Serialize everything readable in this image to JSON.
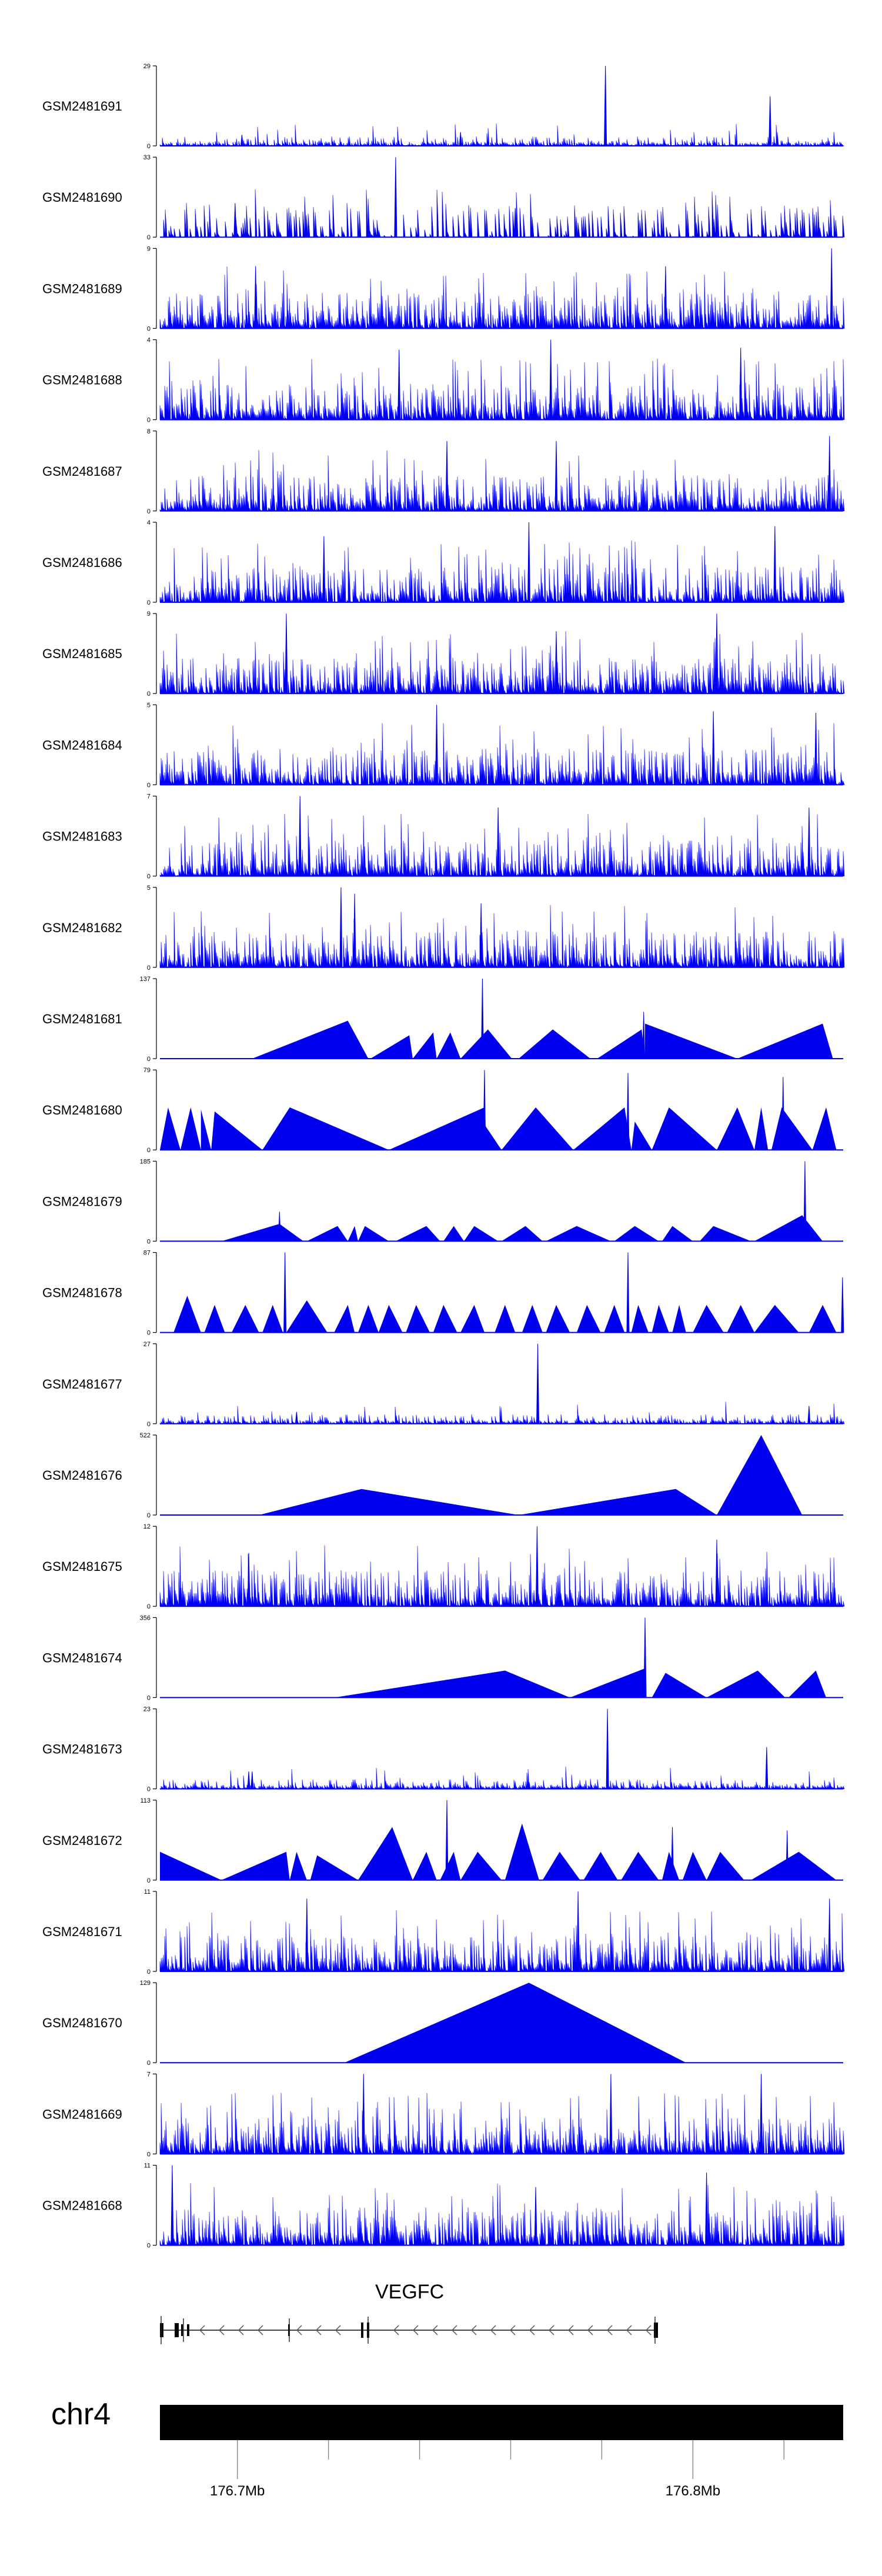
{
  "chart_data": {
    "type": "area",
    "title": "",
    "region": {
      "chromosome": "chr4",
      "gene": "VEGFC",
      "start_mb": 176.683,
      "end_mb": 176.833,
      "axis_ticks_mb": [
        176.7,
        176.8
      ],
      "axis_tick_labels": [
        "176.7Mb",
        "176.8Mb"
      ],
      "minor_ticks_mb": [
        176.72,
        176.74,
        176.76,
        176.78,
        176.82
      ]
    },
    "style": {
      "fill_color": "#0000ee",
      "gene_color": "#000000"
    },
    "tracks": [
      {
        "name": "GSM2481691",
        "ymin": 0,
        "ymax": 29,
        "density": "sparse",
        "seed": 11,
        "peaks": [
          [
            0.652,
            29
          ],
          [
            0.893,
            18
          ],
          [
            0.12,
            4
          ],
          [
            0.44,
            5
          ]
        ]
      },
      {
        "name": "GSM2481690",
        "ymin": 0,
        "ymax": 33,
        "density": "tri",
        "seed": 23,
        "peaks": [
          [
            0.345,
            33
          ],
          [
            0.11,
            14
          ],
          [
            0.52,
            12
          ]
        ]
      },
      {
        "name": "GSM2481689",
        "ymin": 0,
        "ymax": 9,
        "density": "dense",
        "seed": 37,
        "peaks": [
          [
            0.983,
            9
          ],
          [
            0.14,
            7
          ],
          [
            0.74,
            7
          ]
        ]
      },
      {
        "name": "GSM2481688",
        "ymin": 0,
        "ymax": 4,
        "density": "dense",
        "seed": 41,
        "peaks": [
          [
            0.572,
            4
          ],
          [
            0.35,
            3.5
          ],
          [
            0.85,
            3.6
          ]
        ]
      },
      {
        "name": "GSM2481687",
        "ymin": 0,
        "ymax": 8,
        "density": "dense",
        "seed": 53,
        "peaks": [
          [
            0.42,
            7
          ],
          [
            0.58,
            7
          ],
          [
            0.98,
            7.5
          ]
        ]
      },
      {
        "name": "GSM2481686",
        "ymin": 0,
        "ymax": 4,
        "density": "dense",
        "seed": 67,
        "peaks": [
          [
            0.54,
            4
          ],
          [
            0.9,
            3.8
          ],
          [
            0.24,
            3.3
          ]
        ]
      },
      {
        "name": "GSM2481685",
        "ymin": 0,
        "ymax": 9,
        "density": "dense",
        "seed": 71,
        "peaks": [
          [
            0.185,
            9
          ],
          [
            0.815,
            9
          ],
          [
            0.58,
            7
          ]
        ]
      },
      {
        "name": "GSM2481684",
        "ymin": 0,
        "ymax": 5,
        "density": "dense",
        "seed": 83,
        "peaks": [
          [
            0.405,
            5
          ],
          [
            0.81,
            4.6
          ],
          [
            0.96,
            4.5
          ]
        ]
      },
      {
        "name": "GSM2481683",
        "ymin": 0,
        "ymax": 7,
        "density": "dense",
        "seed": 97,
        "peaks": [
          [
            0.205,
            7
          ],
          [
            0.495,
            6
          ],
          [
            0.95,
            6
          ]
        ]
      },
      {
        "name": "GSM2481682",
        "ymin": 0,
        "ymax": 5,
        "density": "dense",
        "seed": 101,
        "peaks": [
          [
            0.265,
            5
          ],
          [
            0.285,
            4.6
          ],
          [
            0.47,
            4
          ]
        ]
      },
      {
        "name": "GSM2481681",
        "ymin": 0,
        "ymax": 137,
        "density": "none",
        "seed": 1,
        "peaks": [
          [
            0.472,
            137
          ],
          [
            0.708,
            80
          ]
        ],
        "tris": [
          [
            0.135,
            0.275,
            0.305,
            65
          ],
          [
            0.308,
            0.365,
            0.37,
            40
          ],
          [
            0.37,
            0.4,
            0.405,
            45
          ],
          [
            0.405,
            0.425,
            0.44,
            45
          ],
          [
            0.44,
            0.48,
            0.515,
            50
          ],
          [
            0.525,
            0.575,
            0.63,
            50
          ],
          [
            0.64,
            0.705,
            0.71,
            50
          ],
          [
            0.71,
            0.71,
            0.845,
            60
          ],
          [
            0.845,
            0.97,
            0.985,
            60
          ]
        ]
      },
      {
        "name": "GSM2481680",
        "ymin": 0,
        "ymax": 79,
        "density": "none",
        "seed": 1,
        "peaks": [
          [
            0.475,
            79
          ],
          [
            0.685,
            76
          ],
          [
            0.912,
            72
          ]
        ],
        "tris": [
          [
            0.0,
            0.012,
            0.03,
            42
          ],
          [
            0.03,
            0.045,
            0.06,
            42
          ],
          [
            0.06,
            0.06,
            0.075,
            40
          ],
          [
            0.075,
            0.08,
            0.15,
            38
          ],
          [
            0.15,
            0.19,
            0.335,
            42
          ],
          [
            0.335,
            0.475,
            0.475,
            42
          ],
          [
            0.475,
            0.475,
            0.5,
            25
          ],
          [
            0.5,
            0.55,
            0.605,
            42
          ],
          [
            0.605,
            0.68,
            0.69,
            42
          ],
          [
            0.69,
            0.695,
            0.72,
            28
          ],
          [
            0.72,
            0.745,
            0.815,
            42
          ],
          [
            0.815,
            0.845,
            0.87,
            42
          ],
          [
            0.87,
            0.88,
            0.89,
            42
          ],
          [
            0.895,
            0.91,
            0.955,
            42
          ],
          [
            0.955,
            0.975,
            0.99,
            42
          ]
        ]
      },
      {
        "name": "GSM2481679",
        "ymin": 0,
        "ymax": 185,
        "density": "none",
        "seed": 1,
        "peaks": [
          [
            0.175,
            68
          ],
          [
            0.944,
            185
          ]
        ],
        "tris": [
          [
            0.09,
            0.175,
            0.21,
            40
          ],
          [
            0.215,
            0.26,
            0.275,
            35
          ],
          [
            0.275,
            0.285,
            0.29,
            35
          ],
          [
            0.29,
            0.3,
            0.335,
            35
          ],
          [
            0.345,
            0.39,
            0.41,
            35
          ],
          [
            0.415,
            0.43,
            0.445,
            35
          ],
          [
            0.445,
            0.46,
            0.495,
            35
          ],
          [
            0.5,
            0.535,
            0.56,
            35
          ],
          [
            0.565,
            0.61,
            0.66,
            35
          ],
          [
            0.665,
            0.695,
            0.73,
            35
          ],
          [
            0.735,
            0.75,
            0.78,
            35
          ],
          [
            0.79,
            0.81,
            0.865,
            35
          ],
          [
            0.87,
            0.94,
            0.97,
            60
          ]
        ]
      },
      {
        "name": "GSM2481678",
        "ymin": 0,
        "ymax": 87,
        "density": "none",
        "seed": 1,
        "peaks": [
          [
            0.183,
            87
          ],
          [
            0.685,
            87
          ],
          [
            0.999,
            60
          ]
        ],
        "tris": [
          [
            0.02,
            0.04,
            0.06,
            40
          ],
          [
            0.065,
            0.08,
            0.095,
            30
          ],
          [
            0.105,
            0.125,
            0.145,
            30
          ],
          [
            0.15,
            0.165,
            0.18,
            30
          ],
          [
            0.185,
            0.215,
            0.245,
            35
          ],
          [
            0.255,
            0.275,
            0.285,
            30
          ],
          [
            0.29,
            0.305,
            0.32,
            30
          ],
          [
            0.32,
            0.335,
            0.355,
            30
          ],
          [
            0.36,
            0.375,
            0.395,
            30
          ],
          [
            0.4,
            0.415,
            0.435,
            30
          ],
          [
            0.44,
            0.46,
            0.475,
            30
          ],
          [
            0.49,
            0.505,
            0.52,
            30
          ],
          [
            0.53,
            0.545,
            0.56,
            30
          ],
          [
            0.565,
            0.58,
            0.6,
            30
          ],
          [
            0.61,
            0.625,
            0.645,
            30
          ],
          [
            0.65,
            0.665,
            0.68,
            30
          ],
          [
            0.69,
            0.7,
            0.715,
            30
          ],
          [
            0.72,
            0.73,
            0.745,
            30
          ],
          [
            0.75,
            0.76,
            0.77,
            30
          ],
          [
            0.78,
            0.8,
            0.825,
            30
          ],
          [
            0.83,
            0.85,
            0.87,
            30
          ],
          [
            0.87,
            0.9,
            0.935,
            30
          ],
          [
            0.95,
            0.97,
            0.99,
            30
          ]
        ]
      },
      {
        "name": "GSM2481677",
        "ymin": 0,
        "ymax": 27,
        "density": "sparse",
        "seed": 131,
        "peaks": [
          [
            0.553,
            27
          ],
          [
            0.95,
            6
          ],
          [
            0.2,
            4
          ]
        ]
      },
      {
        "name": "GSM2481676",
        "ymin": 0,
        "ymax": 522,
        "density": "none",
        "seed": 1,
        "peaks": [],
        "tris": [
          [
            0.145,
            0.295,
            0.525,
            170
          ],
          [
            0.525,
            0.755,
            0.815,
            170
          ],
          [
            0.815,
            0.88,
            0.94,
            522
          ]
        ]
      },
      {
        "name": "GSM2481675",
        "ymin": 0,
        "ymax": 12,
        "density": "dense",
        "seed": 151,
        "peaks": [
          [
            0.552,
            12
          ],
          [
            0.815,
            10
          ],
          [
            0.13,
            8
          ]
        ]
      },
      {
        "name": "GSM2481674",
        "ymin": 0,
        "ymax": 356,
        "density": "none",
        "seed": 1,
        "peaks": [
          [
            0.71,
            356
          ]
        ],
        "tris": [
          [
            0.255,
            0.505,
            0.6,
            120
          ],
          [
            0.6,
            0.71,
            0.71,
            130
          ],
          [
            0.72,
            0.74,
            0.8,
            110
          ],
          [
            0.8,
            0.875,
            0.915,
            120
          ],
          [
            0.92,
            0.96,
            0.975,
            120
          ]
        ]
      },
      {
        "name": "GSM2481673",
        "ymin": 0,
        "ymax": 23,
        "density": "sparse",
        "seed": 163,
        "peaks": [
          [
            0.655,
            23
          ],
          [
            0.888,
            12
          ],
          [
            0.13,
            5
          ],
          [
            0.135,
            5
          ]
        ]
      },
      {
        "name": "GSM2481672",
        "ymin": 0,
        "ymax": 113,
        "density": "none",
        "seed": 1,
        "peaks": [
          [
            0.42,
            113
          ],
          [
            0.75,
            75
          ],
          [
            0.918,
            70
          ]
        ],
        "tris": [
          [
            0.0,
            0.0,
            0.09,
            40
          ],
          [
            0.09,
            0.185,
            0.19,
            40
          ],
          [
            0.19,
            0.2,
            0.215,
            40
          ],
          [
            0.22,
            0.23,
            0.29,
            35
          ],
          [
            0.29,
            0.34,
            0.37,
            75
          ],
          [
            0.37,
            0.39,
            0.405,
            40
          ],
          [
            0.41,
            0.43,
            0.44,
            40
          ],
          [
            0.44,
            0.465,
            0.5,
            40
          ],
          [
            0.505,
            0.53,
            0.555,
            80
          ],
          [
            0.56,
            0.585,
            0.615,
            40
          ],
          [
            0.62,
            0.645,
            0.67,
            40
          ],
          [
            0.675,
            0.7,
            0.73,
            40
          ],
          [
            0.735,
            0.745,
            0.76,
            40
          ],
          [
            0.765,
            0.78,
            0.8,
            40
          ],
          [
            0.8,
            0.82,
            0.855,
            40
          ],
          [
            0.865,
            0.935,
            0.99,
            40
          ]
        ]
      },
      {
        "name": "GSM2481671",
        "ymin": 0,
        "ymax": 11,
        "density": "dense",
        "seed": 181,
        "peaks": [
          [
            0.612,
            11
          ],
          [
            0.215,
            10
          ],
          [
            0.98,
            10
          ]
        ]
      },
      {
        "name": "GSM2481670",
        "ymin": 0,
        "ymax": 129,
        "density": "none",
        "seed": 1,
        "peaks": [],
        "tris": [
          [
            0.27,
            0.54,
            0.77,
            129
          ]
        ]
      },
      {
        "name": "GSM2481669",
        "ymin": 0,
        "ymax": 7,
        "density": "dense",
        "seed": 193,
        "peaks": [
          [
            0.298,
            7
          ],
          [
            0.66,
            7
          ],
          [
            0.88,
            7
          ]
        ]
      },
      {
        "name": "GSM2481668",
        "ymin": 0,
        "ymax": 11,
        "density": "dense",
        "seed": 199,
        "peaks": [
          [
            0.018,
            11
          ],
          [
            0.8,
            10
          ],
          [
            0.55,
            8
          ]
        ]
      }
    ]
  }
}
